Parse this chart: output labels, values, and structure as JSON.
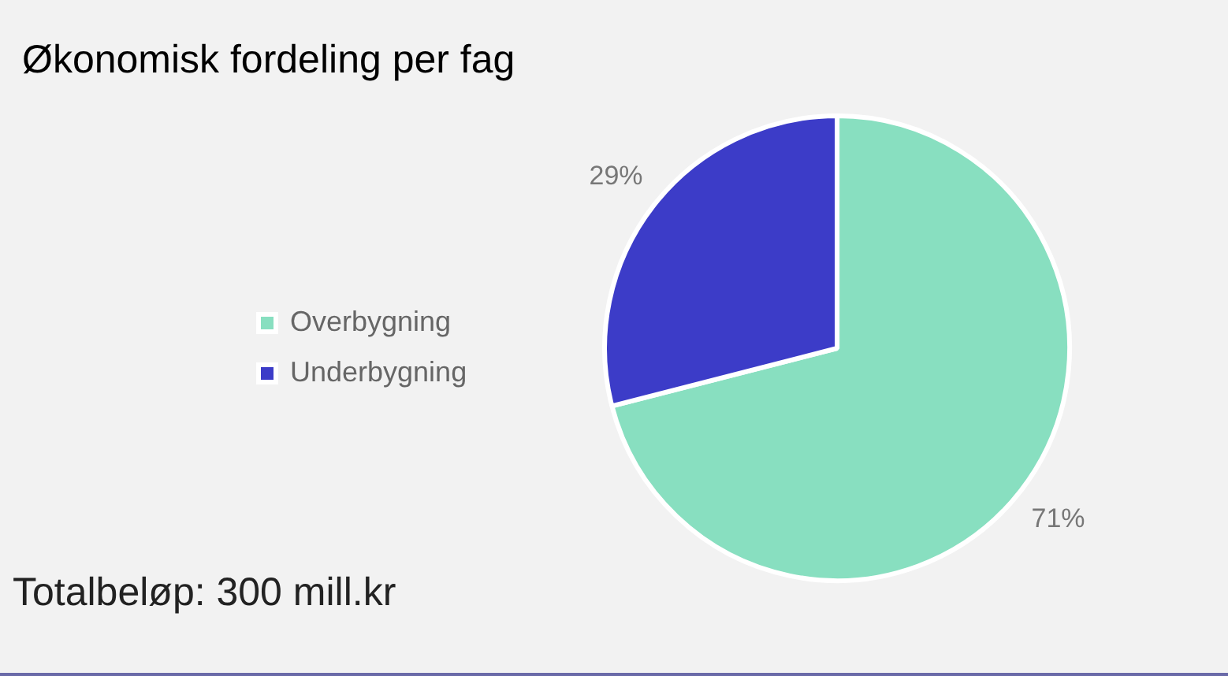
{
  "chart_data": {
    "type": "pie",
    "title": "Økonomisk fordeling per fag",
    "categories": [
      "Overbygning",
      "Underbygning"
    ],
    "values": [
      71,
      29
    ],
    "colors": [
      "#88dfc0",
      "#3c3cc8"
    ],
    "value_labels": [
      "71%",
      "29%"
    ],
    "legend": "left",
    "annotations": [
      "Totalbeløp: 300 mill.kr"
    ]
  }
}
